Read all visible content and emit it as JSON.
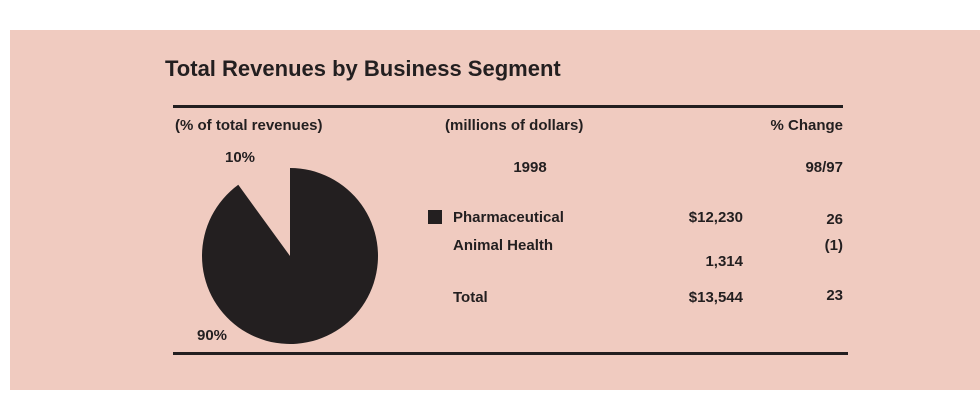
{
  "title": "Total Revenues by Business Segment",
  "chart_data": {
    "type": "pie",
    "subtitle": "(% of total revenues)",
    "values": [
      10,
      90
    ],
    "value_labels": [
      "10%",
      "90%"
    ],
    "colors": [
      "none",
      "#231f20"
    ]
  },
  "table": {
    "header": [
      "(millions of dollars)",
      "% Change"
    ],
    "subheader": [
      "1998",
      "98/97"
    ],
    "rows": [
      [
        "Pharmaceutical",
        "$12,230",
        "26"
      ],
      [
        "Animal Health",
        "1,314",
        "(1)"
      ],
      [
        "Total",
        "$13,544",
        "23"
      ]
    ]
  }
}
